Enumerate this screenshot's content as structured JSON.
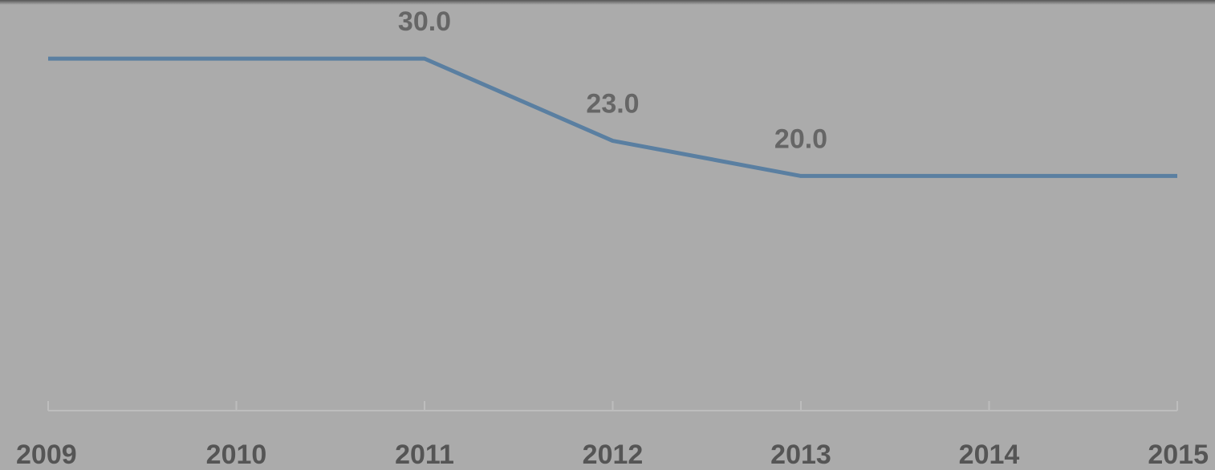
{
  "chart_data": {
    "type": "line",
    "categories": [
      "2009",
      "2010",
      "2011",
      "2012",
      "2013",
      "2014",
      "2015"
    ],
    "series": [
      {
        "color": "#5a7fa1",
        "values": [
          30,
          30,
          30,
          23,
          20,
          20,
          20
        ],
        "value_labels": [
          null,
          null,
          "30.0",
          "23.0",
          "20.0",
          null,
          null
        ]
      }
    ],
    "ylim": [
      0,
      35
    ]
  }
}
